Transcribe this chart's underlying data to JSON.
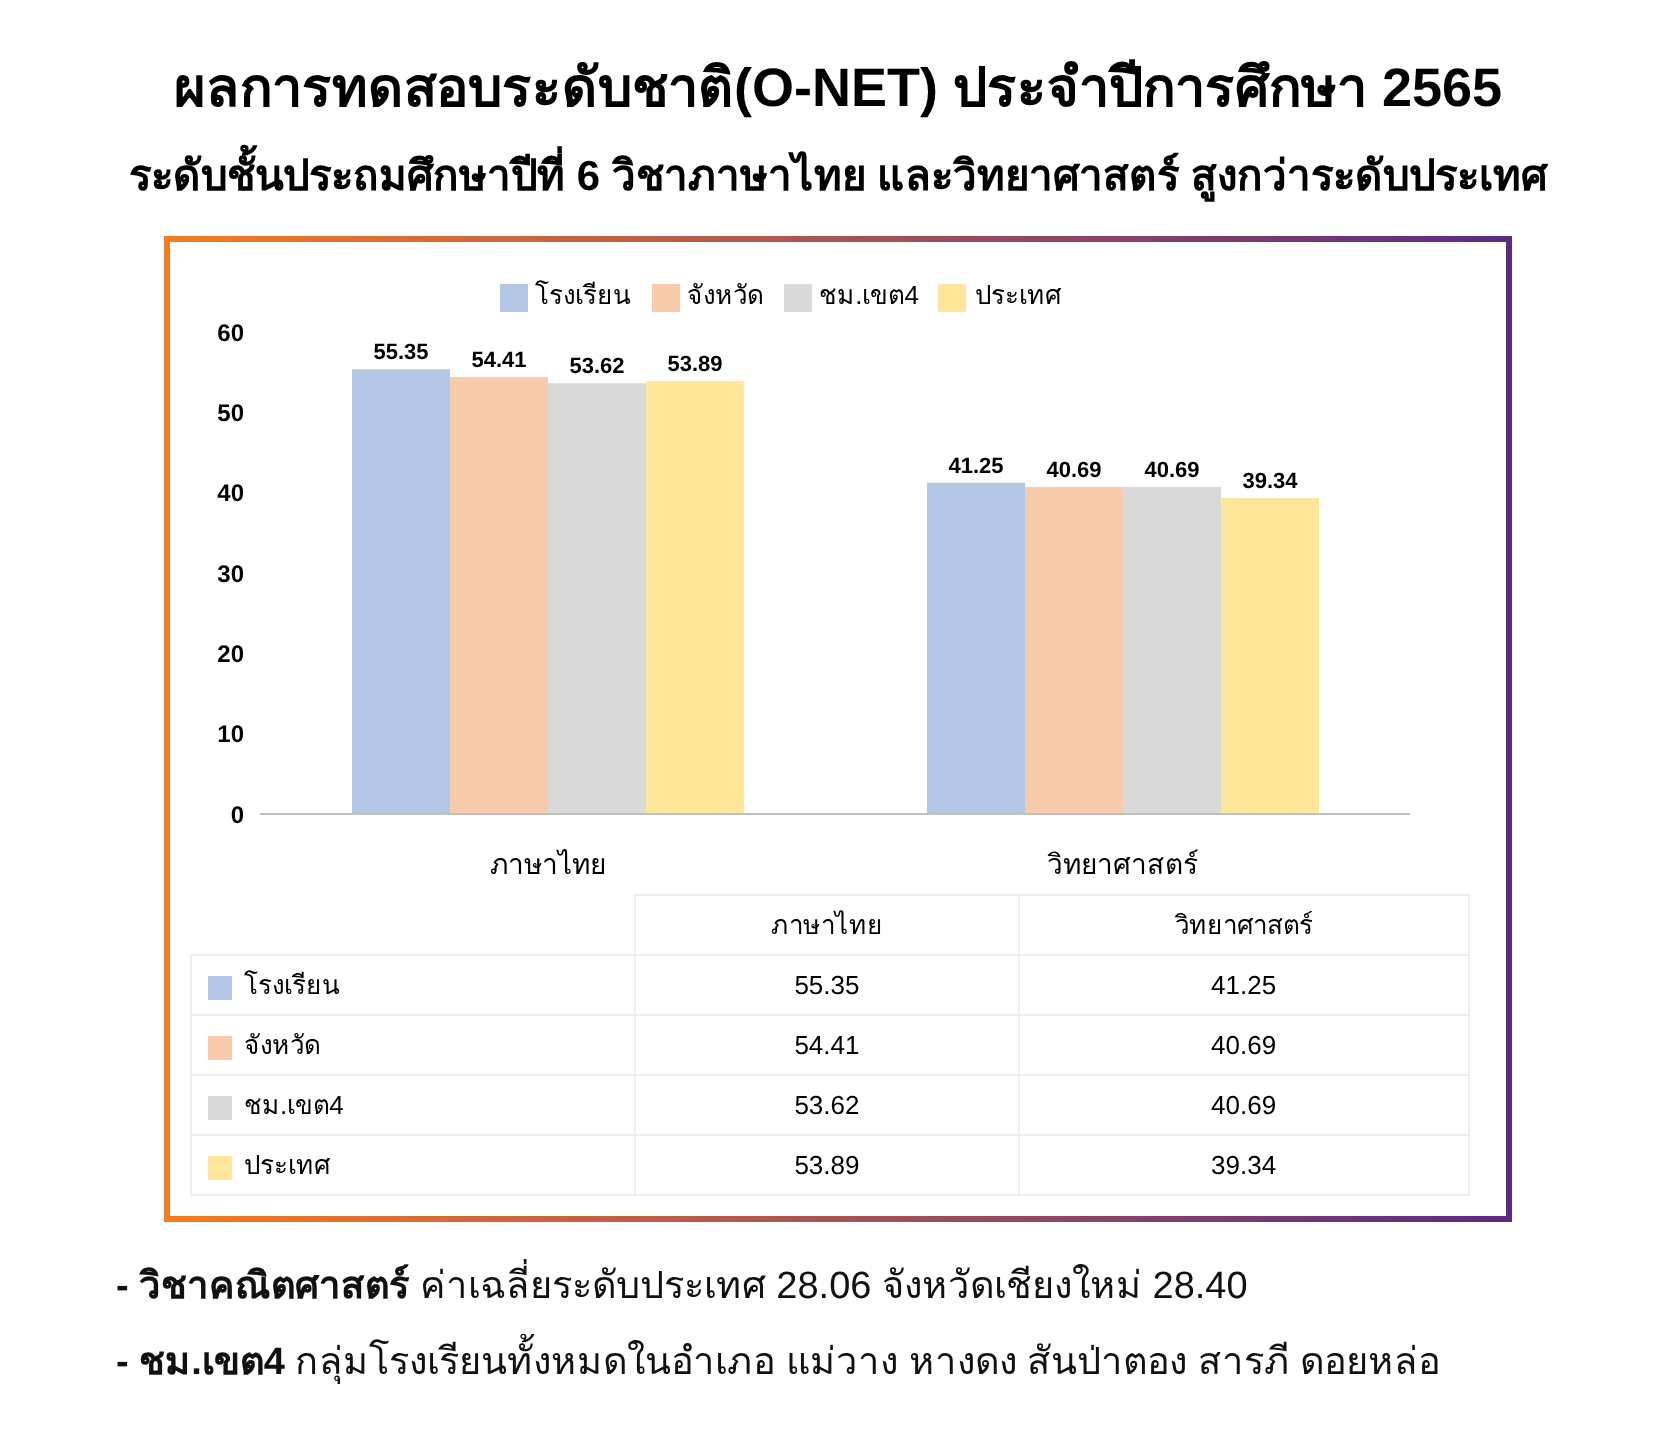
{
  "chart_data": {
    "type": "bar",
    "title": "ผลการทดสอบระดับชาติ(O-NET) ประจำปีการศึกษา 2565",
    "subtitle": "ระดับชั้นประถมศึกษาปีที่ 6 วิชาภาษาไทย และวิทยาศาสตร์ สูงกว่าระดับประเทศ",
    "categories": [
      "ภาษาไทย",
      "วิทยาศาสตร์"
    ],
    "series": [
      {
        "name": "โรงเรียน",
        "color": "#b4c7e7",
        "values": [
          55.35,
          41.25
        ],
        "value_labels": [
          "55.35",
          "41.25"
        ]
      },
      {
        "name": "จังหวัด",
        "color": "#f8cbad",
        "values": [
          54.41,
          40.69
        ],
        "value_labels": [
          "54.41",
          "40.69"
        ]
      },
      {
        "name": "ชม.เขต4",
        "color": "#d9d9d9",
        "values": [
          53.62,
          40.69
        ],
        "value_labels": [
          "53.62",
          "40.69"
        ]
      },
      {
        "name": "ประเทศ",
        "color": "#ffe699",
        "values": [
          53.89,
          39.34
        ],
        "value_labels": [
          "53.89",
          "39.34"
        ]
      }
    ],
    "ylim": [
      0,
      60
    ],
    "yticks": [
      0,
      10,
      20,
      30,
      40,
      50,
      60
    ],
    "grid": false,
    "legend": "top",
    "data_labels": true,
    "annotations": [
      "- วิชาคณิตศาสตร์ ค่าเฉลี่ยระดับประเทศ 28.06 จังหวัดเชียงใหม่ 28.40",
      "- ชม.เขต4 กลุ่มโรงเรียนทั้งหมดในอำเภอ แม่วาง หางดง สันป่าตอง สารภี ดอยหล่อ",
      "55.35",
      "41.25",
      "54.41",
      "40.69",
      "53.62",
      "40.69",
      "53.89",
      "39.34"
    ]
  }
}
